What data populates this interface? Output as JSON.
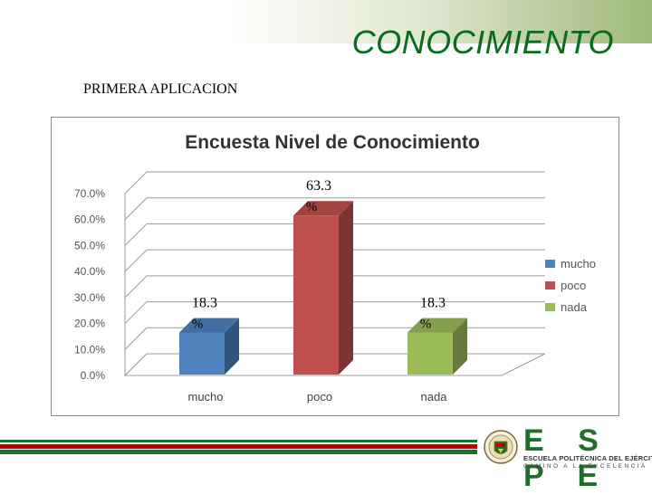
{
  "slide": {
    "title": "CONOCIMIENTO",
    "subtitle": "PRIMERA APLICACION"
  },
  "chart_data": {
    "type": "bar",
    "title": "Encuesta Nivel de Conocimiento",
    "categories": [
      "mucho",
      "poco",
      "nada"
    ],
    "values": [
      18.3,
      63.3,
      18.3
    ],
    "value_labels": [
      "18.3 %",
      "63.3 %",
      "18.3 %"
    ],
    "colors": [
      "#4f81bd",
      "#c0504d",
      "#9bbb59"
    ],
    "y_ticks": [
      "0.0%",
      "10.0%",
      "20.0%",
      "30.0%",
      "40.0%",
      "50.0%",
      "60.0%",
      "70.0%"
    ],
    "ylim": [
      0,
      70
    ],
    "legend_position": "right",
    "legend": [
      "mucho",
      "poco",
      "nada"
    ],
    "grid": true,
    "style": "3d-bar"
  },
  "footer": {
    "logo_letters": "E S P E",
    "institution": "ESCUELA POLITÉCNICA DEL EJÉRCITO",
    "motto": "CAMINO A LA EXCELENCIA",
    "colors": [
      "#c00000",
      "#ffffff",
      "#1f6e2c"
    ]
  }
}
